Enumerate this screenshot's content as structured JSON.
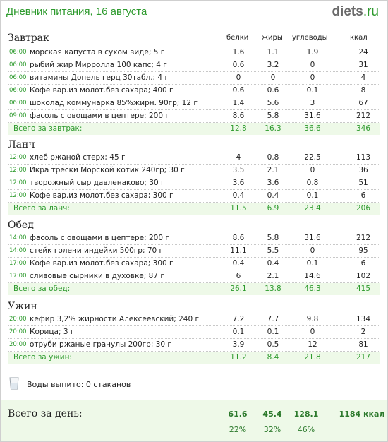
{
  "header": {
    "title": "Дневник питания, 16 августа",
    "logo_main": "diets",
    "logo_dot": ".",
    "logo_tld": "ru"
  },
  "columns": {
    "protein": "белки",
    "fat": "жиры",
    "carbs": "углеводы",
    "kcal": "ккал"
  },
  "sections": [
    {
      "title": "Завтрак",
      "items": [
        {
          "time": "06:00",
          "name": "морская капуста в сухом виде; 5 г",
          "protein": "1.6",
          "fat": "1.1",
          "carbs": "1.9",
          "kcal": "24"
        },
        {
          "time": "06:00",
          "name": "рыбий жир Мирролла 100 капс; 4 г",
          "protein": "0.6",
          "fat": "3.2",
          "carbs": "0",
          "kcal": "31"
        },
        {
          "time": "06:00",
          "name": "витамины Допель герц 30табл.; 4 г",
          "protein": "0",
          "fat": "0",
          "carbs": "0",
          "kcal": "4"
        },
        {
          "time": "06:00",
          "name": "Кофе вар.из молот.без сахара; 400 г",
          "protein": "0.6",
          "fat": "0.6",
          "carbs": "0.1",
          "kcal": "8"
        },
        {
          "time": "06:00",
          "name": "шоколад коммунарка 85%жирн. 90гр; 12 г",
          "protein": "1.4",
          "fat": "5.6",
          "carbs": "3",
          "kcal": "67"
        },
        {
          "time": "09:00",
          "name": "фасоль с овощами в цептере; 200 г",
          "protein": "8.6",
          "fat": "5.8",
          "carbs": "31.6",
          "kcal": "212"
        }
      ],
      "total": {
        "label": "Всего за завтрак:",
        "protein": "12.8",
        "fat": "16.3",
        "carbs": "36.6",
        "kcal": "346"
      }
    },
    {
      "title": "Ланч",
      "items": [
        {
          "time": "12:00",
          "name": "хлеб ржаной стерх; 45 г",
          "protein": "4",
          "fat": "0.8",
          "carbs": "22.5",
          "kcal": "113"
        },
        {
          "time": "12:00",
          "name": "Икра трески Морской котик 240гр; 30 г",
          "protein": "3.5",
          "fat": "2.1",
          "carbs": "0",
          "kcal": "36"
        },
        {
          "time": "12:00",
          "name": "творожный сыр давленаково; 30 г",
          "protein": "3.6",
          "fat": "3.6",
          "carbs": "0.8",
          "kcal": "51"
        },
        {
          "time": "12:00",
          "name": "Кофе вар.из молот.без сахара; 300 г",
          "protein": "0.4",
          "fat": "0.4",
          "carbs": "0.1",
          "kcal": "6"
        }
      ],
      "total": {
        "label": "Всего за ланч:",
        "protein": "11.5",
        "fat": "6.9",
        "carbs": "23.4",
        "kcal": "206"
      }
    },
    {
      "title": "Обед",
      "items": [
        {
          "time": "14:00",
          "name": "фасоль с овощами в цептере; 200 г",
          "protein": "8.6",
          "fat": "5.8",
          "carbs": "31.6",
          "kcal": "212"
        },
        {
          "time": "14:00",
          "name": "стейк голени индейки 500гр; 70 г",
          "protein": "11.1",
          "fat": "5.5",
          "carbs": "0",
          "kcal": "95"
        },
        {
          "time": "17:00",
          "name": "Кофе вар.из молот.без сахара; 300 г",
          "protein": "0.4",
          "fat": "0.4",
          "carbs": "0.1",
          "kcal": "6"
        },
        {
          "time": "17:00",
          "name": "сливовые сырники в духовке; 87 г",
          "protein": "6",
          "fat": "2.1",
          "carbs": "14.6",
          "kcal": "102"
        }
      ],
      "total": {
        "label": "Всего за обед:",
        "protein": "26.1",
        "fat": "13.8",
        "carbs": "46.3",
        "kcal": "415"
      }
    },
    {
      "title": "Ужин",
      "items": [
        {
          "time": "20:00",
          "name": "кефир 3,2% жирности Алексеевский; 240 г",
          "protein": "7.2",
          "fat": "7.7",
          "carbs": "9.8",
          "kcal": "134"
        },
        {
          "time": "20:00",
          "name": "Корица; 3 г",
          "protein": "0.1",
          "fat": "0.1",
          "carbs": "0",
          "kcal": "2"
        },
        {
          "time": "20:00",
          "name": "отруби ржаные гранулы 200гр; 30 г",
          "protein": "3.9",
          "fat": "0.5",
          "carbs": "12",
          "kcal": "81"
        }
      ],
      "total": {
        "label": "Всего за ужин:",
        "protein": "11.2",
        "fat": "8.4",
        "carbs": "21.8",
        "kcal": "217"
      }
    }
  ],
  "water": {
    "label": "Воды выпито: 0 стаканов"
  },
  "day": {
    "label": "Всего за день:",
    "protein": "61.6",
    "fat": "45.4",
    "carbs": "128.1",
    "kcal": "1184 ккал",
    "protein_pct": "22%",
    "fat_pct": "32%",
    "carbs_pct": "46%"
  }
}
